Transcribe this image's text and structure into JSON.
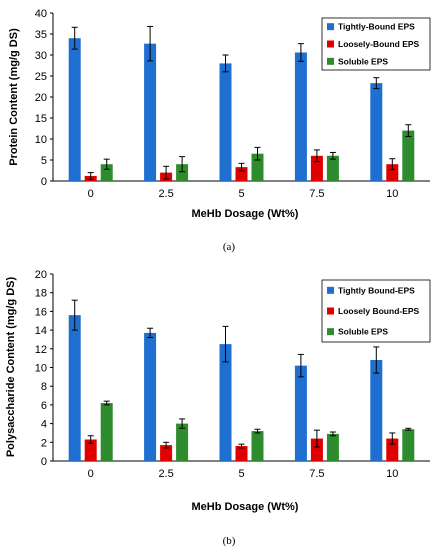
{
  "chart_data": [
    {
      "type": "bar",
      "panel_label": "(a)",
      "xlabel": "MeHb Dosage (Wt%)",
      "ylabel": "Protein Content (mg/g DS)",
      "ylim": [
        0,
        40
      ],
      "yticks": [
        0,
        5,
        10,
        15,
        20,
        25,
        30,
        35,
        40
      ],
      "categories": [
        "0",
        "2.5",
        "5",
        "7.5",
        "10"
      ],
      "grid": false,
      "legend_position": "top-right",
      "series": [
        {
          "name": "Tightly-Bound EPS",
          "color": "#1f6fd1",
          "values": [
            34.0,
            32.7,
            28.0,
            30.6,
            23.3
          ],
          "errors": [
            2.6,
            4.1,
            2.0,
            2.1,
            1.3
          ]
        },
        {
          "name": "Loosely-Bound EPS",
          "color": "#e00000",
          "values": [
            1.2,
            2.0,
            3.3,
            6.0,
            4.0
          ],
          "errors": [
            0.8,
            1.5,
            0.9,
            1.4,
            1.3
          ]
        },
        {
          "name": "Soluble EPS",
          "color": "#2e8b2e",
          "values": [
            4.0,
            4.0,
            6.5,
            6.0,
            12.0
          ],
          "errors": [
            1.2,
            1.8,
            1.5,
            0.8,
            1.4
          ]
        }
      ]
    },
    {
      "type": "bar",
      "panel_label": "(b)",
      "xlabel": "MeHb Dosage (Wt%)",
      "ylabel": "Polysaccharide Content (mg/g DS)",
      "ylim": [
        0,
        20
      ],
      "yticks": [
        0,
        2,
        4,
        6,
        8,
        10,
        12,
        14,
        16,
        18,
        20
      ],
      "categories": [
        "0",
        "2.5",
        "5",
        "7.5",
        "10"
      ],
      "grid": false,
      "legend_position": "top-right",
      "series": [
        {
          "name": "Tightly Bound-EPS",
          "color": "#1f6fd1",
          "values": [
            15.6,
            13.7,
            12.5,
            10.2,
            10.8
          ],
          "errors": [
            1.6,
            0.5,
            1.9,
            1.2,
            1.4
          ]
        },
        {
          "name": "Loosely Bound-EPS",
          "color": "#e00000",
          "values": [
            2.3,
            1.7,
            1.6,
            2.4,
            2.4
          ],
          "errors": [
            0.4,
            0.3,
            0.2,
            0.9,
            0.6
          ]
        },
        {
          "name": "Soluble EPS",
          "color": "#2e8b2e",
          "values": [
            6.2,
            4.0,
            3.2,
            2.9,
            3.4
          ],
          "errors": [
            0.2,
            0.5,
            0.2,
            0.2,
            0.1
          ]
        }
      ]
    }
  ]
}
